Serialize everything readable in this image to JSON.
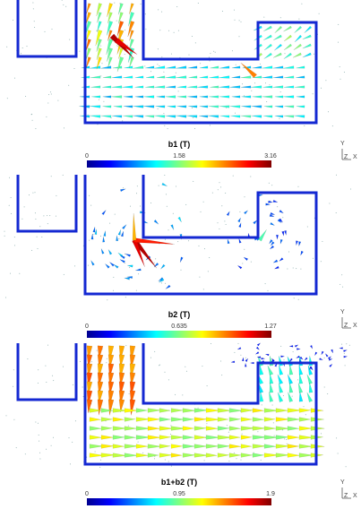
{
  "panels": [
    {
      "id": "b1",
      "colorbar": {
        "title": "b1 (T)",
        "min": "0",
        "mid": "1.58",
        "max": "3.16"
      }
    },
    {
      "id": "b2",
      "colorbar": {
        "title": "b2 (T)",
        "min": "0",
        "mid": "0.635",
        "max": "1.27"
      }
    },
    {
      "id": "b1b2",
      "colorbar": {
        "title": "b1+b2 (T)",
        "min": "0",
        "mid": "0.95",
        "max": "1.9"
      }
    }
  ],
  "axis_triad": {
    "y": "Y",
    "z": "Z",
    "x": "X"
  },
  "colors": {
    "outline": "#1428d2",
    "arrow_low": "#0a14c8",
    "arrow_high": "#a0000a"
  }
}
